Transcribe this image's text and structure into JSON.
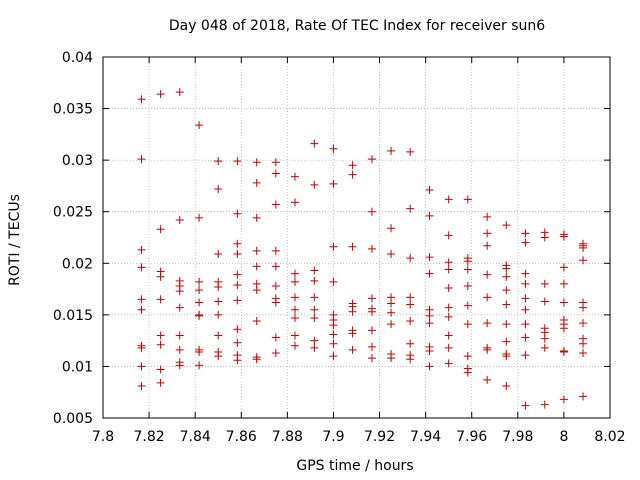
{
  "chart_data": {
    "type": "scatter",
    "title": "Day 048 of 2018, Rate Of TEC Index for receiver sun6",
    "xlabel": "GPS time / hours",
    "ylabel": "ROTI / TECUs",
    "xlim": [
      7.8,
      8.02
    ],
    "ylim": [
      0.005,
      0.04
    ],
    "x_ticks": [
      "7.8",
      "7.82",
      "7.84",
      "7.86",
      "7.88",
      "7.9",
      "7.92",
      "7.94",
      "7.96",
      "7.98",
      "8",
      "8.02"
    ],
    "y_ticks": [
      "0.005",
      "0.01",
      "0.015",
      "0.02",
      "0.025",
      "0.03",
      "0.035",
      "0.04"
    ],
    "x_tick_values": [
      7.8,
      7.82,
      7.84,
      7.86,
      7.88,
      7.9,
      7.92,
      7.94,
      7.96,
      7.98,
      8.0,
      8.02
    ],
    "y_tick_values": [
      0.005,
      0.01,
      0.015,
      0.02,
      0.025,
      0.03,
      0.035,
      0.04
    ],
    "grid": true,
    "marker": "+",
    "series": [
      {
        "name": "ROTI",
        "color": "#cc0000",
        "points": [
          [
            7.8167,
            0.0359
          ],
          [
            7.8167,
            0.0301
          ],
          [
            7.8167,
            0.0213
          ],
          [
            7.8167,
            0.0196
          ],
          [
            7.8167,
            0.0165
          ],
          [
            7.8167,
            0.0155
          ],
          [
            7.8167,
            0.012
          ],
          [
            7.8167,
            0.0118
          ],
          [
            7.8167,
            0.01
          ],
          [
            7.8167,
            0.0081
          ],
          [
            7.825,
            0.0364
          ],
          [
            7.825,
            0.0233
          ],
          [
            7.825,
            0.0192
          ],
          [
            7.825,
            0.0187
          ],
          [
            7.825,
            0.0165
          ],
          [
            7.825,
            0.013
          ],
          [
            7.825,
            0.0121
          ],
          [
            7.825,
            0.0097
          ],
          [
            7.825,
            0.0084
          ],
          [
            7.8333,
            0.0366
          ],
          [
            7.8333,
            0.0242
          ],
          [
            7.8333,
            0.0183
          ],
          [
            7.8333,
            0.0178
          ],
          [
            7.8333,
            0.0173
          ],
          [
            7.8333,
            0.0157
          ],
          [
            7.8333,
            0.013
          ],
          [
            7.8333,
            0.0116
          ],
          [
            7.8333,
            0.0104
          ],
          [
            7.8333,
            0.0101
          ],
          [
            7.8417,
            0.0334
          ],
          [
            7.8417,
            0.0244
          ],
          [
            7.8417,
            0.0182
          ],
          [
            7.8417,
            0.0174
          ],
          [
            7.8417,
            0.0162
          ],
          [
            7.8417,
            0.015
          ],
          [
            7.8417,
            0.0149
          ],
          [
            7.8417,
            0.0116
          ],
          [
            7.8417,
            0.0114
          ],
          [
            7.8417,
            0.0101
          ],
          [
            7.85,
            0.0299
          ],
          [
            7.85,
            0.0272
          ],
          [
            7.85,
            0.0209
          ],
          [
            7.85,
            0.0182
          ],
          [
            7.85,
            0.0177
          ],
          [
            7.85,
            0.0163
          ],
          [
            7.85,
            0.015
          ],
          [
            7.85,
            0.013
          ],
          [
            7.85,
            0.0114
          ],
          [
            7.85,
            0.011
          ],
          [
            7.8583,
            0.0299
          ],
          [
            7.8583,
            0.0248
          ],
          [
            7.8583,
            0.0219
          ],
          [
            7.8583,
            0.0209
          ],
          [
            7.8583,
            0.0189
          ],
          [
            7.8583,
            0.0179
          ],
          [
            7.8583,
            0.0164
          ],
          [
            7.8583,
            0.0136
          ],
          [
            7.8583,
            0.0123
          ],
          [
            7.8583,
            0.0111
          ],
          [
            7.8583,
            0.0106
          ],
          [
            7.8667,
            0.0298
          ],
          [
            7.8667,
            0.0278
          ],
          [
            7.8667,
            0.0244
          ],
          [
            7.8667,
            0.0212
          ],
          [
            7.8667,
            0.0197
          ],
          [
            7.8667,
            0.018
          ],
          [
            7.8667,
            0.0174
          ],
          [
            7.8667,
            0.0144
          ],
          [
            7.8667,
            0.0109
          ],
          [
            7.8667,
            0.0107
          ],
          [
            7.875,
            0.0298
          ],
          [
            7.875,
            0.0287
          ],
          [
            7.875,
            0.0257
          ],
          [
            7.875,
            0.0212
          ],
          [
            7.875,
            0.0197
          ],
          [
            7.875,
            0.0178
          ],
          [
            7.875,
            0.0166
          ],
          [
            7.875,
            0.0162
          ],
          [
            7.875,
            0.0128
          ],
          [
            7.875,
            0.0113
          ],
          [
            7.8833,
            0.0284
          ],
          [
            7.8833,
            0.0259
          ],
          [
            7.8833,
            0.019
          ],
          [
            7.8833,
            0.0182
          ],
          [
            7.8833,
            0.0167
          ],
          [
            7.8833,
            0.0155
          ],
          [
            7.8833,
            0.0147
          ],
          [
            7.8833,
            0.013
          ],
          [
            7.8833,
            0.012
          ],
          [
            7.8917,
            0.0316
          ],
          [
            7.8917,
            0.0276
          ],
          [
            7.8917,
            0.0193
          ],
          [
            7.8917,
            0.0183
          ],
          [
            7.8917,
            0.0167
          ],
          [
            7.8917,
            0.0155
          ],
          [
            7.8917,
            0.0147
          ],
          [
            7.8917,
            0.0125
          ],
          [
            7.8917,
            0.0118
          ],
          [
            7.9,
            0.0311
          ],
          [
            7.9,
            0.0277
          ],
          [
            7.9,
            0.0216
          ],
          [
            7.9,
            0.0182
          ],
          [
            7.9,
            0.015
          ],
          [
            7.9,
            0.0145
          ],
          [
            7.9,
            0.014
          ],
          [
            7.9,
            0.0131
          ],
          [
            7.9,
            0.0122
          ],
          [
            7.9,
            0.011
          ],
          [
            7.9083,
            0.0295
          ],
          [
            7.9083,
            0.0286
          ],
          [
            7.9083,
            0.0216
          ],
          [
            7.9083,
            0.0161
          ],
          [
            7.9083,
            0.0158
          ],
          [
            7.9083,
            0.0153
          ],
          [
            7.9083,
            0.0135
          ],
          [
            7.9083,
            0.0132
          ],
          [
            7.9083,
            0.0116
          ],
          [
            7.9167,
            0.0301
          ],
          [
            7.9167,
            0.025
          ],
          [
            7.9167,
            0.0214
          ],
          [
            7.9167,
            0.0166
          ],
          [
            7.9167,
            0.0156
          ],
          [
            7.9167,
            0.0153
          ],
          [
            7.9167,
            0.0135
          ],
          [
            7.9167,
            0.0119
          ],
          [
            7.9167,
            0.0108
          ],
          [
            7.925,
            0.0309
          ],
          [
            7.925,
            0.0234
          ],
          [
            7.925,
            0.0209
          ],
          [
            7.925,
            0.0167
          ],
          [
            7.925,
            0.0161
          ],
          [
            7.925,
            0.0152
          ],
          [
            7.925,
            0.0141
          ],
          [
            7.925,
            0.0112
          ],
          [
            7.925,
            0.0108
          ],
          [
            7.9333,
            0.0308
          ],
          [
            7.9333,
            0.0253
          ],
          [
            7.9333,
            0.0205
          ],
          [
            7.9333,
            0.0167
          ],
          [
            7.9333,
            0.016
          ],
          [
            7.9333,
            0.0144
          ],
          [
            7.9333,
            0.0122
          ],
          [
            7.9333,
            0.0111
          ],
          [
            7.9333,
            0.0107
          ],
          [
            7.9417,
            0.0271
          ],
          [
            7.9417,
            0.0246
          ],
          [
            7.9417,
            0.0206
          ],
          [
            7.9417,
            0.019
          ],
          [
            7.9417,
            0.0155
          ],
          [
            7.9417,
            0.0149
          ],
          [
            7.9417,
            0.0142
          ],
          [
            7.9417,
            0.0119
          ],
          [
            7.9417,
            0.0115
          ],
          [
            7.9417,
            0.01
          ],
          [
            7.95,
            0.0262
          ],
          [
            7.95,
            0.0227
          ],
          [
            7.95,
            0.0201
          ],
          [
            7.95,
            0.0194
          ],
          [
            7.95,
            0.0176
          ],
          [
            7.95,
            0.0157
          ],
          [
            7.95,
            0.0148
          ],
          [
            7.95,
            0.013
          ],
          [
            7.95,
            0.0118
          ],
          [
            7.95,
            0.0103
          ],
          [
            7.9583,
            0.0262
          ],
          [
            7.9583,
            0.0205
          ],
          [
            7.9583,
            0.0202
          ],
          [
            7.9583,
            0.0194
          ],
          [
            7.9583,
            0.0178
          ],
          [
            7.9583,
            0.0159
          ],
          [
            7.9583,
            0.0141
          ],
          [
            7.9583,
            0.011
          ],
          [
            7.9583,
            0.0098
          ],
          [
            7.9583,
            0.0094
          ],
          [
            7.9667,
            0.0245
          ],
          [
            7.9667,
            0.0229
          ],
          [
            7.9667,
            0.0217
          ],
          [
            7.9667,
            0.0189
          ],
          [
            7.9667,
            0.0167
          ],
          [
            7.9667,
            0.0142
          ],
          [
            7.9667,
            0.0118
          ],
          [
            7.9667,
            0.0116
          ],
          [
            7.9667,
            0.0087
          ],
          [
            7.975,
            0.0237
          ],
          [
            7.975,
            0.0198
          ],
          [
            7.975,
            0.0195
          ],
          [
            7.975,
            0.0187
          ],
          [
            7.975,
            0.0174
          ],
          [
            7.975,
            0.016
          ],
          [
            7.975,
            0.0141
          ],
          [
            7.975,
            0.0124
          ],
          [
            7.975,
            0.0112
          ],
          [
            7.975,
            0.011
          ],
          [
            7.975,
            0.0081
          ],
          [
            7.9833,
            0.0229
          ],
          [
            7.9833,
            0.022
          ],
          [
            7.9833,
            0.019
          ],
          [
            7.9833,
            0.018
          ],
          [
            7.9833,
            0.0166
          ],
          [
            7.9833,
            0.0155
          ],
          [
            7.9833,
            0.0141
          ],
          [
            7.9833,
            0.0128
          ],
          [
            7.9833,
            0.0111
          ],
          [
            7.9833,
            0.0062
          ],
          [
            7.9917,
            0.023
          ],
          [
            7.9917,
            0.0225
          ],
          [
            7.9917,
            0.018
          ],
          [
            7.9917,
            0.0163
          ],
          [
            7.9917,
            0.0137
          ],
          [
            7.9917,
            0.0133
          ],
          [
            7.9917,
            0.0127
          ],
          [
            7.9917,
            0.0118
          ],
          [
            7.9917,
            0.0063
          ],
          [
            8.0,
            0.0228
          ],
          [
            8.0,
            0.0226
          ],
          [
            8.0,
            0.0196
          ],
          [
            8.0,
            0.018
          ],
          [
            8.0,
            0.0162
          ],
          [
            8.0,
            0.0145
          ],
          [
            8.0,
            0.0141
          ],
          [
            8.0,
            0.0137
          ],
          [
            8.0,
            0.0115
          ],
          [
            8.0,
            0.0114
          ],
          [
            8.0,
            0.0068
          ],
          [
            8.0083,
            0.0219
          ],
          [
            8.0083,
            0.0217
          ],
          [
            8.0083,
            0.0215
          ],
          [
            8.0083,
            0.0203
          ],
          [
            8.0083,
            0.0162
          ],
          [
            8.0083,
            0.0157
          ],
          [
            8.0083,
            0.0142
          ],
          [
            8.0083,
            0.0127
          ],
          [
            8.0083,
            0.0122
          ],
          [
            8.0083,
            0.0113
          ],
          [
            8.0083,
            0.0071
          ]
        ]
      }
    ]
  }
}
